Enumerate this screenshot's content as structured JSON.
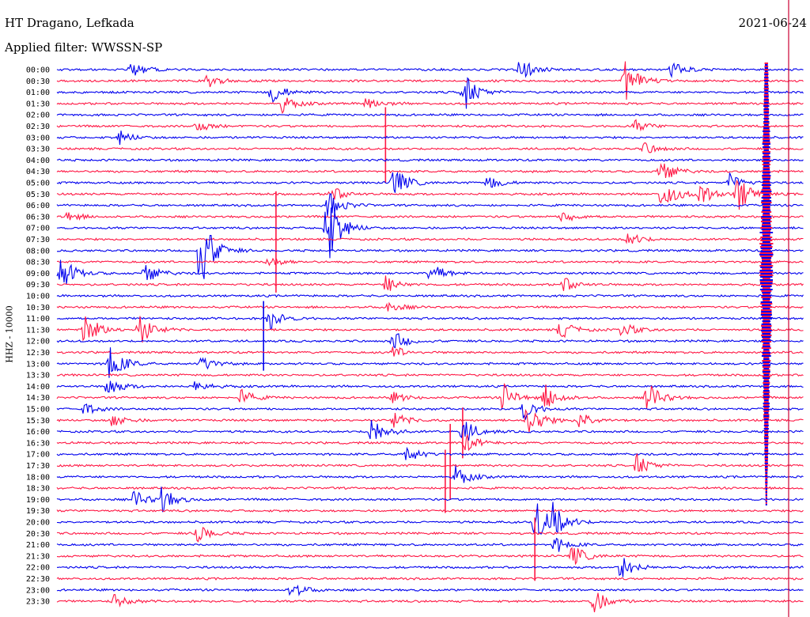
{
  "header": {
    "station": "HT Dragano, Lefkada",
    "filter": "Applied filter: WWSSN-SP",
    "date": "2021-06-24",
    "channel": "HHZ - 10000"
  },
  "colors": {
    "odd_hour": "#0000ee",
    "half_hour": "#ff1744",
    "marker": "#cc0033"
  },
  "chart_data": {
    "type": "line",
    "title": "HT Dragano, Lefkada",
    "subtitle": "Applied filter: WWSSN-SP",
    "ylabel": "HHZ - 10000",
    "date": "2021-06-24",
    "y_ticks": [
      "00:00",
      "00:30",
      "01:00",
      "01:30",
      "02:00",
      "02:30",
      "03:00",
      "03:30",
      "04:00",
      "04:30",
      "05:00",
      "05:30",
      "06:00",
      "06:30",
      "07:00",
      "07:30",
      "08:00",
      "08:30",
      "09:00",
      "09:30",
      "10:00",
      "10:30",
      "11:00",
      "11:30",
      "12:00",
      "12:30",
      "13:00",
      "13:30",
      "14:00",
      "14:30",
      "15:00",
      "15:30",
      "16:00",
      "16:30",
      "17:00",
      "17:30",
      "18:00",
      "18:30",
      "19:00",
      "19:30",
      "20:00",
      "20:30",
      "21:00",
      "21:30",
      "22:00",
      "22:30",
      "23:00",
      "23:30"
    ],
    "line_minutes": 30,
    "series_colors": [
      "#0000ee",
      "#ff1744"
    ],
    "events": [
      {
        "line": 0,
        "minute": 2.9,
        "amp": 1.2
      },
      {
        "line": 0,
        "minute": 18.6,
        "amp": 1.5
      },
      {
        "line": 0,
        "minute": 24.7,
        "amp": 1.2
      },
      {
        "line": 1,
        "minute": 6.0,
        "amp": 1.0
      },
      {
        "line": 1,
        "minute": 22.8,
        "amp": 2.8
      },
      {
        "line": 2,
        "minute": 8.6,
        "amp": 1.5
      },
      {
        "line": 2,
        "minute": 16.3,
        "amp": 2.8
      },
      {
        "line": 3,
        "minute": 9.0,
        "amp": 1.2
      },
      {
        "line": 3,
        "minute": 12.4,
        "amp": 1.0
      },
      {
        "line": 5,
        "minute": 5.6,
        "amp": 0.8
      },
      {
        "line": 5,
        "minute": 23.2,
        "amp": 0.8
      },
      {
        "line": 6,
        "minute": 2.5,
        "amp": 0.9
      },
      {
        "line": 7,
        "minute": 23.6,
        "amp": 0.8
      },
      {
        "line": 9,
        "minute": 24.2,
        "amp": 1.8
      },
      {
        "line": 10,
        "minute": 13.5,
        "amp": 2.2
      },
      {
        "line": 10,
        "minute": 17.3,
        "amp": 1.0
      },
      {
        "line": 10,
        "minute": 27.0,
        "amp": 1.2
      },
      {
        "line": 11,
        "minute": 10.9,
        "amp": 1.3
      },
      {
        "line": 11,
        "minute": 24.3,
        "amp": 2.4
      },
      {
        "line": 11,
        "minute": 25.8,
        "amp": 1.5
      },
      {
        "line": 11,
        "minute": 27.3,
        "amp": 2.5
      },
      {
        "line": 12,
        "minute": 10.9,
        "amp": 1.8
      },
      {
        "line": 13,
        "minute": 0.3,
        "amp": 0.8
      },
      {
        "line": 13,
        "minute": 20.3,
        "amp": 0.8
      },
      {
        "line": 14,
        "minute": 10.8,
        "amp": 5.5
      },
      {
        "line": 15,
        "minute": 22.9,
        "amp": 1.0
      },
      {
        "line": 16,
        "minute": 5.7,
        "amp": 5.8
      },
      {
        "line": 17,
        "minute": 8.5,
        "amp": 0.8
      },
      {
        "line": 18,
        "minute": 0.1,
        "amp": 2.6
      },
      {
        "line": 18,
        "minute": 3.5,
        "amp": 1.4
      },
      {
        "line": 18,
        "minute": 15.0,
        "amp": 1.4
      },
      {
        "line": 19,
        "minute": 13.2,
        "amp": 1.1
      },
      {
        "line": 19,
        "minute": 20.3,
        "amp": 1.0
      },
      {
        "line": 21,
        "minute": 13.3,
        "amp": 0.8
      },
      {
        "line": 22,
        "minute": 8.5,
        "amp": 1.5
      },
      {
        "line": 23,
        "minute": 1.1,
        "amp": 2.4
      },
      {
        "line": 23,
        "minute": 3.3,
        "amp": 2.1
      },
      {
        "line": 23,
        "minute": 20.2,
        "amp": 1.3
      },
      {
        "line": 23,
        "minute": 22.7,
        "amp": 1.0
      },
      {
        "line": 24,
        "minute": 13.5,
        "amp": 1.3
      },
      {
        "line": 25,
        "minute": 13.5,
        "amp": 0.8
      },
      {
        "line": 26,
        "minute": 2.0,
        "amp": 3.3
      },
      {
        "line": 26,
        "minute": 5.8,
        "amp": 1.0
      },
      {
        "line": 28,
        "minute": 2.0,
        "amp": 1.4
      },
      {
        "line": 28,
        "minute": 5.5,
        "amp": 0.9
      },
      {
        "line": 29,
        "minute": 7.4,
        "amp": 1.0
      },
      {
        "line": 29,
        "minute": 13.5,
        "amp": 0.7
      },
      {
        "line": 29,
        "minute": 17.9,
        "amp": 1.9
      },
      {
        "line": 29,
        "minute": 19.6,
        "amp": 1.8
      },
      {
        "line": 29,
        "minute": 23.7,
        "amp": 2.1
      },
      {
        "line": 30,
        "minute": 1.1,
        "amp": 0.8
      },
      {
        "line": 30,
        "minute": 18.7,
        "amp": 1.6
      },
      {
        "line": 31,
        "minute": 2.2,
        "amp": 1.0
      },
      {
        "line": 31,
        "minute": 13.5,
        "amp": 1.1
      },
      {
        "line": 31,
        "minute": 18.9,
        "amp": 2.8
      },
      {
        "line": 31,
        "minute": 21.0,
        "amp": 1.3
      },
      {
        "line": 32,
        "minute": 12.6,
        "amp": 2.4
      },
      {
        "line": 32,
        "minute": 16.3,
        "amp": 1.8
      },
      {
        "line": 33,
        "minute": 16.4,
        "amp": 1.2
      },
      {
        "line": 34,
        "minute": 14.0,
        "amp": 1.2
      },
      {
        "line": 35,
        "minute": 23.3,
        "amp": 1.5
      },
      {
        "line": 36,
        "minute": 16.0,
        "amp": 1.5
      },
      {
        "line": 38,
        "minute": 3.1,
        "amp": 1.2
      },
      {
        "line": 38,
        "minute": 4.2,
        "amp": 1.6
      },
      {
        "line": 40,
        "minute": 19.2,
        "amp": 3.0
      },
      {
        "line": 40,
        "minute": 19.9,
        "amp": 2.0
      },
      {
        "line": 41,
        "minute": 5.6,
        "amp": 1.3
      },
      {
        "line": 42,
        "minute": 20.0,
        "amp": 1.1
      },
      {
        "line": 43,
        "minute": 20.7,
        "amp": 1.5
      },
      {
        "line": 44,
        "minute": 22.6,
        "amp": 1.8
      },
      {
        "line": 46,
        "minute": 9.4,
        "amp": 1.2
      },
      {
        "line": 47,
        "minute": 2.3,
        "amp": 0.8
      },
      {
        "line": 47,
        "minute": 21.5,
        "amp": 1.8
      }
    ],
    "spikes": [
      {
        "line": 5,
        "minute": 13.2,
        "amp": 6.0
      },
      {
        "line": 13,
        "minute": 8.8,
        "amp": 8.0
      },
      {
        "line": 22,
        "minute": 8.3,
        "amp": 5.5
      },
      {
        "line": 31,
        "minute": 16.3,
        "amp": 4.0
      },
      {
        "line": 33,
        "minute": 15.8,
        "amp": 6.0
      },
      {
        "line": 35,
        "minute": 15.6,
        "amp": 5.0
      },
      {
        "line": 41,
        "minute": 19.2,
        "amp": 5.0
      }
    ],
    "marker_minute": 28.5
  }
}
